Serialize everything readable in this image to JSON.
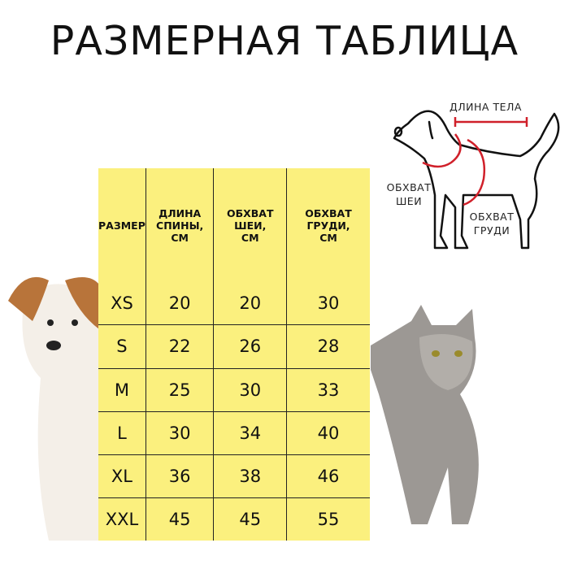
{
  "title": "РАЗМЕРНАЯ ТАБЛИЦА",
  "table": {
    "headers": [
      "РАЗМЕР",
      "ДЛИНА СПИНЫ, СМ",
      "ОБХВАТ ШЕИ, СМ",
      "ОБХВАТ ГРУДИ, СМ"
    ],
    "rows": [
      [
        "XS",
        "20",
        "20",
        "30"
      ],
      [
        "S",
        "22",
        "26",
        "28"
      ],
      [
        "M",
        "25",
        "30",
        "33"
      ],
      [
        "L",
        "30",
        "34",
        "40"
      ],
      [
        "XL",
        "36",
        "38",
        "46"
      ],
      [
        "XXL",
        "45",
        "45",
        "55"
      ]
    ]
  },
  "diagram": {
    "body_length": "ДЛИНА ТЕЛА",
    "neck_girth": "ОБХВАТ ШЕИ",
    "chest_girth": "ОБХВАТ ГРУДИ"
  },
  "colors": {
    "table_bg": "#fbf07e",
    "measure_line": "#d0202a"
  }
}
